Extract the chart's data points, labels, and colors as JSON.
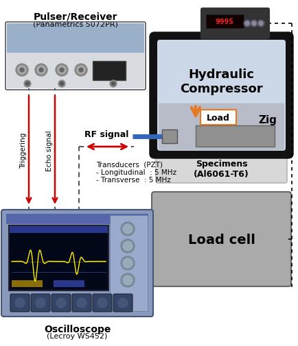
{
  "pulser_label": "Pulser/Receiver",
  "pulser_sublabel": "(Panametrics 5072PR)",
  "oscilloscope_label": "Oscilloscope",
  "oscilloscope_sublabel": "(Lecroy WS452)",
  "hydraulic_label": "Hydraulic\nCompressor",
  "specimens_label": "Specimens\n(Al6061-T6)",
  "load_cell_label": "Load cell",
  "load_box_label": "Load",
  "zig_label": "Zig",
  "rf_signal_label": "RF signal",
  "triggering_label": "Triggering",
  "echo_signal_label": "Echo signal",
  "transducer_label": "Transducers  (PZT)\n- Longitudinal  : 5 MHz\n- Transverse  : 5 MHz",
  "bg_color": "#ffffff",
  "pulser_body_color": "#9ab0c8",
  "pulser_front_color": "#d8dce0",
  "pulser_top_color": "#b8ccd8",
  "oscilloscope_body_color": "#8899bb",
  "oscilloscope_screen_bg": "#1a2035",
  "oscilloscope_screen_dark": "#050815",
  "oscilloscope_header_color": "#6677aa",
  "hydraulic_outer_color": "#222222",
  "hydraulic_inner_color": "#ccd8e8",
  "load_cell_color": "#aaaaaa",
  "specimen_outer_color": "#c8c8c8",
  "specimen_inner_color": "#b0b0b8",
  "zig_inner_color": "#c0c4cc",
  "transducer_color": "#3366bb",
  "arrow_red": "#cc0000",
  "arrow_orange": "#e87820",
  "dashed_line_color": "#444444",
  "meter_body_color": "#333333",
  "meter_display_color": "#110000"
}
